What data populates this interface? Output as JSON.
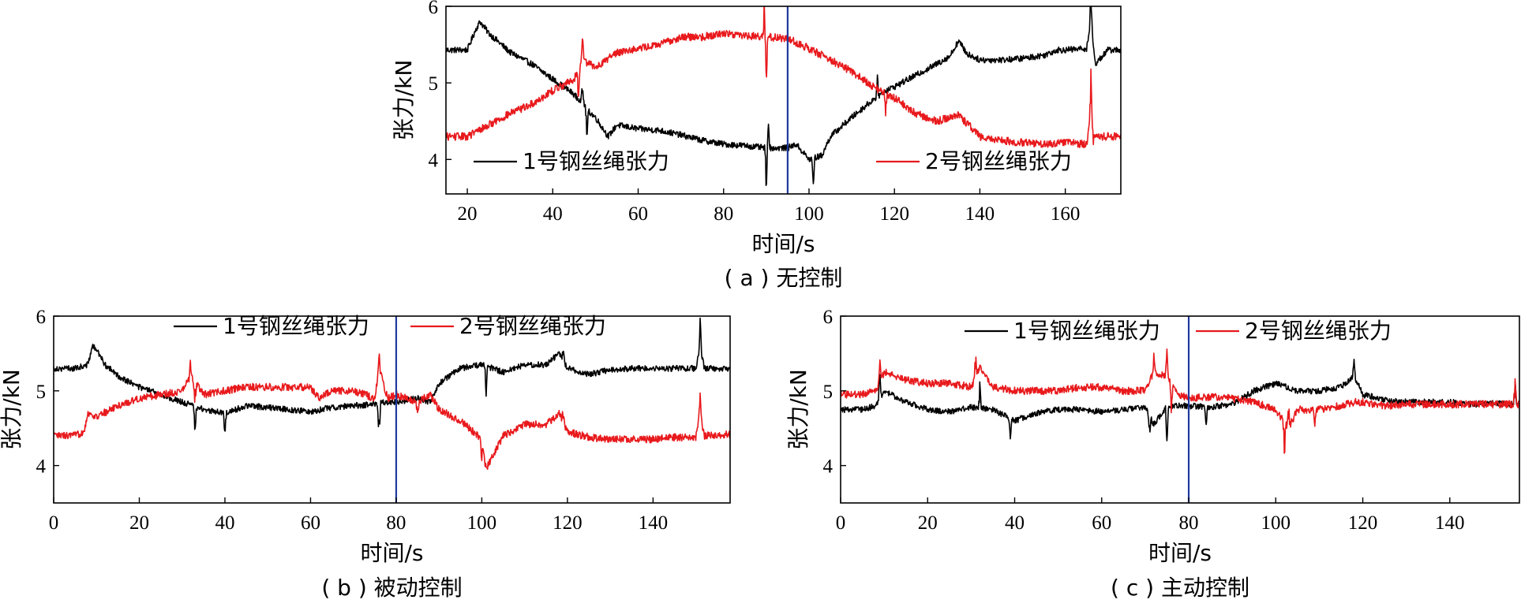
{
  "colors": {
    "series1": "#000000",
    "series2": "#e8191c",
    "marker": "#1f3a9e",
    "frame": "#000000"
  },
  "chart_data": [
    {
      "type": "line",
      "caption": "( a ) 无控制",
      "xlabel": "时间/s",
      "ylabel": "张力/kN",
      "xlim": [
        15,
        173
      ],
      "ylim": [
        3.55,
        6
      ],
      "xticks": [
        20,
        40,
        60,
        80,
        100,
        120,
        140,
        160
      ],
      "yticks": [
        4,
        5,
        6
      ],
      "marker_x": 95,
      "legend_position": "bottom-split",
      "series": [
        {
          "name": "1号钢丝绳张力",
          "x": [
            15,
            20,
            22,
            23,
            25,
            30,
            35,
            40,
            45,
            48,
            50,
            53,
            55,
            60,
            65,
            70,
            75,
            80,
            85,
            90,
            95,
            97,
            100,
            103,
            105,
            110,
            115,
            118,
            120,
            125,
            130,
            133,
            135,
            137,
            140,
            145,
            150,
            155,
            158,
            160,
            165,
            166,
            167,
            170,
            173
          ],
          "y": [
            5.43,
            5.43,
            5.7,
            5.8,
            5.65,
            5.4,
            5.25,
            5.05,
            4.85,
            4.65,
            4.55,
            4.3,
            4.45,
            4.4,
            4.38,
            4.32,
            4.25,
            4.2,
            4.18,
            4.15,
            4.15,
            4.2,
            4.0,
            4.05,
            4.3,
            4.55,
            4.78,
            4.9,
            4.95,
            5.1,
            5.25,
            5.35,
            5.55,
            5.38,
            5.3,
            5.3,
            5.32,
            5.36,
            5.43,
            5.43,
            5.45,
            5.8,
            5.25,
            5.43,
            5.43
          ],
          "noise": 0.04,
          "spikes": [
            [
              47,
              0.45
            ],
            [
              48,
              -0.35
            ],
            [
              90,
              -0.55
            ],
            [
              90.5,
              0.35
            ],
            [
              101,
              -0.35
            ],
            [
              116,
              0.25
            ],
            [
              166,
              0.5
            ]
          ]
        },
        {
          "name": "2号钢丝绳张力",
          "x": [
            15,
            20,
            25,
            30,
            35,
            40,
            45,
            47,
            50,
            55,
            60,
            65,
            70,
            75,
            80,
            85,
            90,
            95,
            100,
            105,
            110,
            115,
            120,
            125,
            130,
            133,
            135,
            140,
            145,
            150,
            155,
            160,
            165,
            166,
            167,
            170,
            173
          ],
          "y": [
            4.3,
            4.3,
            4.45,
            4.6,
            4.72,
            4.9,
            5.05,
            5.3,
            5.2,
            5.4,
            5.45,
            5.5,
            5.6,
            5.6,
            5.65,
            5.62,
            5.6,
            5.58,
            5.45,
            5.3,
            5.15,
            4.95,
            4.8,
            4.6,
            4.5,
            4.55,
            4.58,
            4.3,
            4.25,
            4.22,
            4.2,
            4.22,
            4.2,
            4.6,
            4.3,
            4.3,
            4.3
          ],
          "noise": 0.05,
          "spikes": [
            [
              46,
              -0.4
            ],
            [
              47,
              0.35
            ],
            [
              89.5,
              0.45
            ],
            [
              90,
              -0.6
            ],
            [
              118,
              -0.35
            ],
            [
              166,
              0.55
            ],
            [
              166.5,
              -0.25
            ]
          ]
        }
      ]
    },
    {
      "type": "line",
      "caption": "( b ) 被动控制",
      "xlabel": "时间/s",
      "ylabel": "张力/kN",
      "xlim": [
        0,
        158
      ],
      "ylim": [
        3.5,
        6
      ],
      "xticks": [
        0,
        20,
        40,
        60,
        80,
        100,
        120,
        140
      ],
      "yticks": [
        4,
        5,
        6
      ],
      "marker_x": 80,
      "legend_position": "top",
      "series": [
        {
          "name": "1号钢丝绳张力",
          "x": [
            0,
            5,
            8,
            9,
            10,
            12,
            15,
            20,
            25,
            30,
            35,
            40,
            45,
            50,
            55,
            60,
            65,
            70,
            75,
            78,
            80,
            85,
            88,
            90,
            95,
            100,
            105,
            110,
            115,
            118,
            120,
            125,
            130,
            135,
            140,
            145,
            150,
            151,
            152,
            158
          ],
          "y": [
            5.3,
            5.3,
            5.35,
            5.6,
            5.55,
            5.35,
            5.2,
            5.05,
            4.95,
            4.85,
            4.75,
            4.7,
            4.8,
            4.78,
            4.75,
            4.72,
            4.78,
            4.8,
            4.82,
            4.85,
            4.85,
            4.9,
            4.85,
            5.1,
            5.3,
            5.35,
            5.25,
            5.35,
            5.35,
            5.5,
            5.3,
            5.22,
            5.28,
            5.3,
            5.3,
            5.3,
            5.3,
            5.6,
            5.3,
            5.3
          ],
          "noise": 0.04,
          "spikes": [
            [
              33,
              -0.35
            ],
            [
              40,
              -0.3
            ],
            [
              76,
              -0.5
            ],
            [
              101,
              -0.4
            ],
            [
              119,
              0.2
            ],
            [
              151,
              0.4
            ]
          ]
        },
        {
          "name": "2号钢丝绳张力",
          "x": [
            0,
            5,
            7,
            8,
            10,
            15,
            20,
            25,
            30,
            32,
            35,
            40,
            45,
            50,
            55,
            60,
            62,
            65,
            70,
            75,
            76,
            78,
            80,
            85,
            88,
            90,
            95,
            100,
            101,
            105,
            110,
            115,
            118,
            120,
            125,
            130,
            135,
            140,
            145,
            150,
            151,
            152,
            158
          ],
          "y": [
            4.4,
            4.4,
            4.45,
            4.7,
            4.65,
            4.8,
            4.9,
            4.95,
            5.0,
            5.2,
            4.95,
            5.0,
            5.05,
            5.05,
            5.05,
            5.05,
            4.9,
            5.0,
            5.0,
            4.9,
            5.3,
            4.9,
            4.95,
            4.85,
            4.95,
            4.75,
            4.6,
            4.35,
            3.95,
            4.4,
            4.55,
            4.55,
            4.7,
            4.45,
            4.38,
            4.35,
            4.35,
            4.35,
            4.38,
            4.38,
            4.7,
            4.4,
            4.42
          ],
          "noise": 0.05,
          "spikes": [
            [
              32,
              0.3
            ],
            [
              33,
              -0.3
            ],
            [
              76,
              0.2
            ],
            [
              85,
              -0.2
            ],
            [
              100,
              -0.3
            ],
            [
              119,
              0.15
            ],
            [
              151,
              0.25
            ]
          ]
        }
      ]
    },
    {
      "type": "line",
      "caption": "( c ) 主动控制",
      "xlabel": "时间/s",
      "ylabel": "张力/kN",
      "xlim": [
        0,
        156
      ],
      "ylim": [
        3.5,
        6
      ],
      "xticks": [
        0,
        20,
        40,
        60,
        80,
        100,
        120,
        140
      ],
      "yticks": [
        4,
        5,
        6
      ],
      "marker_x": 80,
      "legend_position": "top",
      "series": [
        {
          "name": "1号钢丝绳张力",
          "x": [
            0,
            5,
            8,
            10,
            15,
            20,
            25,
            30,
            35,
            40,
            45,
            50,
            55,
            60,
            65,
            70,
            72,
            75,
            78,
            80,
            85,
            90,
            95,
            100,
            105,
            110,
            115,
            118,
            120,
            125,
            130,
            135,
            140,
            145,
            150,
            156
          ],
          "y": [
            4.75,
            4.75,
            4.8,
            5.0,
            4.85,
            4.75,
            4.72,
            4.78,
            4.75,
            4.6,
            4.7,
            4.75,
            4.75,
            4.72,
            4.75,
            4.78,
            4.55,
            4.8,
            4.8,
            4.8,
            4.78,
            4.82,
            5.0,
            5.1,
            5.0,
            5.0,
            5.05,
            5.2,
            4.95,
            4.88,
            4.85,
            4.85,
            4.85,
            4.82,
            4.83,
            4.82
          ],
          "noise": 0.04,
          "spikes": [
            [
              9,
              0.3
            ],
            [
              32,
              0.35
            ],
            [
              39,
              -0.25
            ],
            [
              71,
              -0.3
            ],
            [
              75,
              -0.5
            ],
            [
              84,
              -0.25
            ],
            [
              118,
              0.2
            ],
            [
              155,
              0.3
            ]
          ]
        },
        {
          "name": "2号钢丝绳张力",
          "x": [
            0,
            5,
            8,
            10,
            15,
            20,
            25,
            30,
            32,
            35,
            40,
            45,
            50,
            55,
            60,
            65,
            70,
            72,
            75,
            78,
            80,
            85,
            90,
            95,
            100,
            103,
            105,
            110,
            115,
            118,
            120,
            125,
            130,
            135,
            140,
            145,
            150,
            156
          ],
          "y": [
            4.95,
            4.95,
            5.0,
            5.25,
            5.15,
            5.1,
            5.1,
            5.05,
            5.3,
            5.05,
            5.0,
            5.0,
            5.0,
            5.05,
            5.05,
            5.0,
            5.0,
            5.25,
            5.2,
            4.95,
            4.9,
            4.92,
            4.9,
            4.85,
            4.75,
            4.5,
            4.75,
            4.75,
            4.8,
            4.85,
            4.85,
            4.8,
            4.82,
            4.82,
            4.82,
            4.82,
            4.82,
            4.82
          ],
          "noise": 0.05,
          "spikes": [
            [
              9,
              0.3
            ],
            [
              31,
              0.3
            ],
            [
              72,
              0.3
            ],
            [
              75,
              0.35
            ],
            [
              76,
              -0.4
            ],
            [
              102,
              -0.45
            ],
            [
              103,
              0.3
            ],
            [
              109,
              -0.25
            ],
            [
              155,
              0.35
            ]
          ]
        }
      ]
    }
  ]
}
